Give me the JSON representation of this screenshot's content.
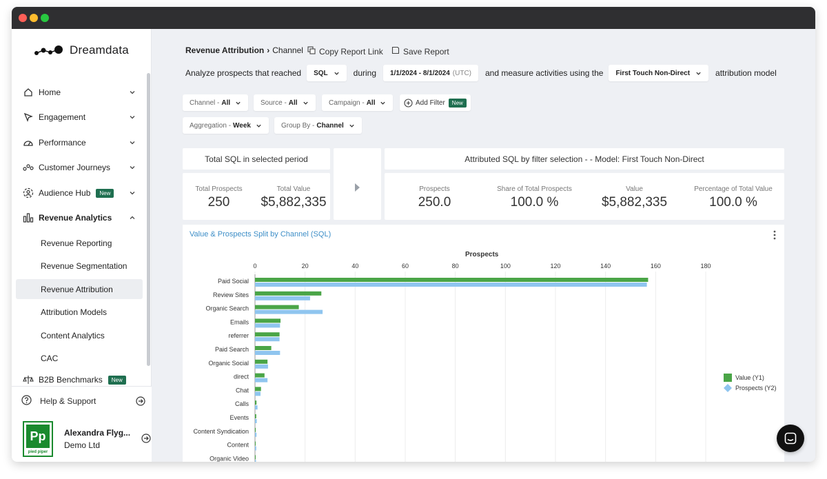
{
  "app": {
    "logo_text": "Dreamdata"
  },
  "sidebar": {
    "items": [
      {
        "label": "Home",
        "icon": "home-icon"
      },
      {
        "label": "Engagement",
        "icon": "cursor-icon"
      },
      {
        "label": "Performance",
        "icon": "gauge-icon"
      },
      {
        "label": "Customer Journeys",
        "icon": "journey-icon"
      },
      {
        "label": "Audience Hub",
        "icon": "audience-icon",
        "badge": "New"
      },
      {
        "label": "Revenue Analytics",
        "icon": "bar-chart-icon"
      },
      {
        "label": "B2B Benchmarks",
        "icon": "scale-icon",
        "badge": "New"
      }
    ],
    "sub_items": [
      "Revenue Reporting",
      "Revenue Segmentation",
      "Revenue Attribution",
      "Attribution Models",
      "Content Analytics",
      "CAC"
    ],
    "help_label": "Help & Support",
    "user_name": "Alexandra Flyg...",
    "user_org": "Demo Ltd",
    "avatar_caption": "pied piper",
    "avatar_initials": "Pp"
  },
  "header": {
    "crumb_parent": "Revenue Attribution",
    "crumb_current": "Channel",
    "copy_link": "Copy Report Link",
    "save_report": "Save Report"
  },
  "query": {
    "prefix": "Analyze prospects that reached",
    "stage": "SQL",
    "during": "during",
    "date_range": "1/1/2024 - 8/1/2024",
    "timezone": "(UTC)",
    "measure": "and measure activities using the",
    "model": "First Touch Non-Direct",
    "suffix": "attribution model"
  },
  "filters": {
    "channel_label": "Channel -",
    "channel_value": "All",
    "source_label": "Source -",
    "source_value": "All",
    "campaign_label": "Campaign -",
    "campaign_value": "All",
    "add_filter": "Add Filter",
    "add_filter_badge": "New",
    "aggregation_label": "Aggregation -",
    "aggregation_value": "Week",
    "group_label": "Group By -",
    "group_value": "Channel"
  },
  "summary": {
    "left_title": "Total SQL in selected period",
    "total_prospects_label": "Total Prospects",
    "total_prospects": "250",
    "total_value_label": "Total Value",
    "total_value": "$5,882,335",
    "right_title": "Attributed SQL by filter selection - - Model: First Touch Non-Direct",
    "prospects_label": "Prospects",
    "prospects": "250.0",
    "share_label": "Share of Total Prospects",
    "share": "100.0 %",
    "value_label": "Value",
    "value": "$5,882,335",
    "pct_value_label": "Percentage of Total Value",
    "pct_value": "100.0 %"
  },
  "chart_data": {
    "type": "bar",
    "orientation": "horizontal",
    "title": "Value & Prospects Split by Channel (SQL)",
    "xlabel": "Prospects",
    "xlim": [
      0,
      180
    ],
    "xticks": [
      0,
      20,
      40,
      60,
      80,
      100,
      120,
      140,
      160,
      180
    ],
    "categories": [
      "Paid Social",
      "Review Sites",
      "Organic Search",
      "Emails",
      "referrer",
      "Paid Search",
      "Organic Social",
      "direct",
      "Chat",
      "Calls",
      "Events",
      "Content Syndication",
      "Content",
      "Organic Video"
    ],
    "series": [
      {
        "name": "Value (Y1)",
        "color": "#4aa547",
        "values": [
          157,
          26.5,
          17.5,
          10.2,
          9.8,
          6.5,
          5,
          3.8,
          2.4,
          0.6,
          0.5,
          0.3,
          0.2,
          0.1
        ]
      },
      {
        "name": "Prospects (Y2)",
        "color": "#8fc5ef",
        "values": [
          156.5,
          22,
          27,
          10,
          9.8,
          10,
          5.2,
          5,
          2.2,
          1,
          0.7,
          0.6,
          0.5,
          0.4
        ]
      }
    ],
    "legend_position": "right"
  }
}
